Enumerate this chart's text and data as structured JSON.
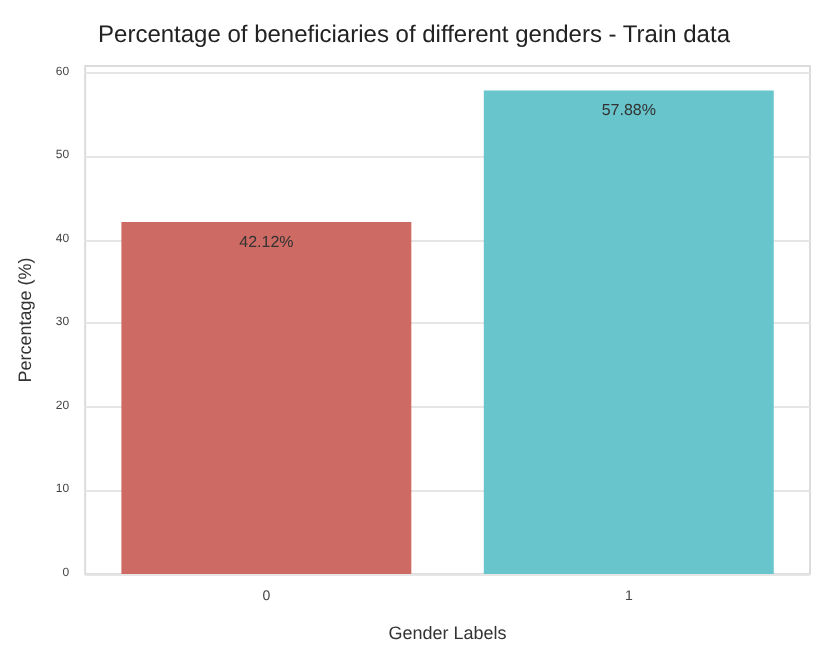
{
  "chart_data": {
    "type": "bar",
    "title": "Percentage of beneficiaries of different genders - Train data",
    "xlabel": "Gender Labels",
    "ylabel": "Percentage (%)",
    "categories": [
      "0",
      "1"
    ],
    "values": [
      42.12,
      57.88
    ],
    "colors": [
      "#cc6a63",
      "#68c5cc"
    ],
    "value_labels": [
      "42.12%",
      "57.88%"
    ],
    "ylim": [
      0,
      60.8
    ],
    "yticks": [
      0,
      10,
      20,
      30,
      40,
      50,
      60
    ],
    "grid": "y"
  }
}
